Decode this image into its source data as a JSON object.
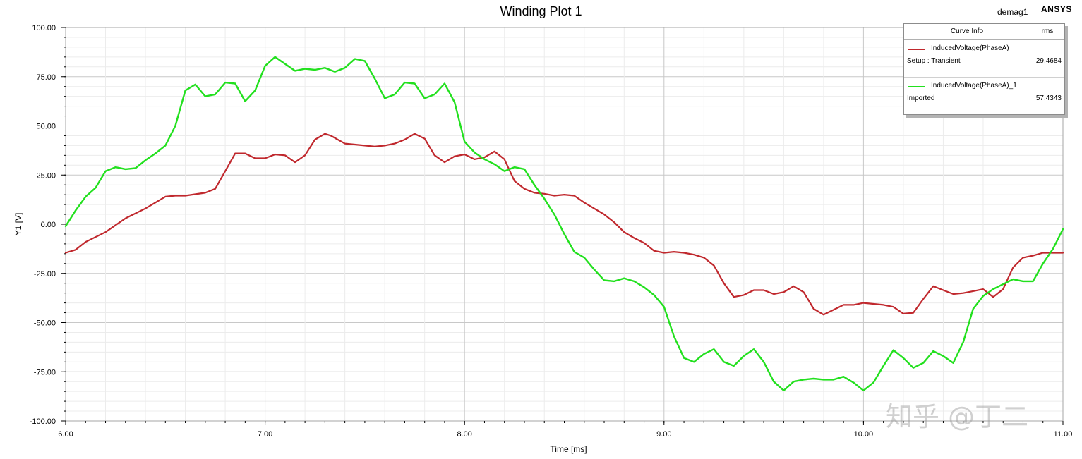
{
  "plot": {
    "title": "Winding Plot 1",
    "design_name": "demag1",
    "brand": "ANSYS",
    "watermark": "知乎 @丁二"
  },
  "legend": {
    "header_name": "Curve Info",
    "header_value": "rms",
    "entries": [
      {
        "name": "InducedVoltage(PhaseA)",
        "source": "Setup : Transient",
        "rms": "29.4684",
        "color": "#c0282d"
      },
      {
        "name": "InducedVoltage(PhaseA)_1",
        "source": "Imported",
        "rms": "57.4343",
        "color": "#22e01e"
      }
    ]
  },
  "chart_data": {
    "type": "line",
    "title": "Winding Plot 1",
    "xlabel": "Time [ms]",
    "ylabel": "Y1 [V]",
    "xlim": [
      6.0,
      11.0
    ],
    "ylim": [
      -100.0,
      100.0
    ],
    "x_ticks": [
      "6.00",
      "7.00",
      "8.00",
      "9.00",
      "10.00",
      "11.00"
    ],
    "y_ticks": [
      "100.00",
      "75.00",
      "50.00",
      "25.00",
      "0.00",
      "-25.00",
      "-50.00",
      "-75.00",
      "-100.00"
    ],
    "grid": true,
    "legend_position": "top-right",
    "series": [
      {
        "name": "InducedVoltage(PhaseA)",
        "color": "#c0282d",
        "x": [
          6.0,
          6.05,
          6.1,
          6.2,
          6.3,
          6.4,
          6.5,
          6.55,
          6.6,
          6.7,
          6.75,
          6.8,
          6.85,
          6.9,
          6.95,
          7.0,
          7.05,
          7.1,
          7.15,
          7.2,
          7.25,
          7.3,
          7.33,
          7.4,
          7.45,
          7.5,
          7.55,
          7.6,
          7.65,
          7.7,
          7.75,
          7.8,
          7.85,
          7.9,
          7.95,
          8.0,
          8.05,
          8.1,
          8.15,
          8.2,
          8.25,
          8.3,
          8.35,
          8.4,
          8.45,
          8.5,
          8.55,
          8.6,
          8.65,
          8.7,
          8.75,
          8.8,
          8.85,
          8.9,
          8.95,
          9.0,
          9.05,
          9.1,
          9.15,
          9.2,
          9.25,
          9.3,
          9.35,
          9.4,
          9.45,
          9.5,
          9.55,
          9.6,
          9.65,
          9.7,
          9.75,
          9.8,
          9.85,
          9.9,
          9.95,
          10.0,
          10.05,
          10.1,
          10.15,
          10.2,
          10.25,
          10.3,
          10.35,
          10.4,
          10.45,
          10.5,
          10.55,
          10.6,
          10.65,
          10.7,
          10.75,
          10.8,
          10.85,
          10.9,
          10.95,
          11.0
        ],
        "y": [
          -14.5,
          -13.0,
          -9.0,
          -4.0,
          3.0,
          8.0,
          14.0,
          14.5,
          14.5,
          16.0,
          18.0,
          27.0,
          36.0,
          36.0,
          33.5,
          33.5,
          35.5,
          35.0,
          31.5,
          35.0,
          43.0,
          46.0,
          45.0,
          41.0,
          40.5,
          40.0,
          39.5,
          40.0,
          41.0,
          43.0,
          46.0,
          43.5,
          35.0,
          31.5,
          34.5,
          35.5,
          33.0,
          34.0,
          37.0,
          33.0,
          22.0,
          18.0,
          16.0,
          15.5,
          14.5,
          15.0,
          14.5,
          11.0,
          8.0,
          5.0,
          1.0,
          -4.0,
          -7.0,
          -9.5,
          -13.5,
          -14.5,
          -14.0,
          -14.5,
          -15.5,
          -17.0,
          -21.0,
          -30.0,
          -37.0,
          -36.0,
          -33.5,
          -33.5,
          -35.5,
          -34.5,
          -31.5,
          -34.5,
          -43.0,
          -46.0,
          -43.5,
          -41.0,
          -41.0,
          -40.0,
          -40.5,
          -41.0,
          -42.0,
          -45.5,
          -45.0,
          -38.0,
          -31.5,
          -33.5,
          -35.5,
          -35.0,
          -34.0,
          -33.0,
          -37.0,
          -33.0,
          -22.0,
          -17.0,
          -16.0,
          -14.5,
          -14.5,
          -14.5
        ]
      },
      {
        "name": "InducedVoltage(PhaseA)_1",
        "color": "#22e01e",
        "x": [
          6.0,
          6.05,
          6.1,
          6.15,
          6.2,
          6.25,
          6.3,
          6.35,
          6.4,
          6.45,
          6.5,
          6.55,
          6.6,
          6.65,
          6.7,
          6.75,
          6.8,
          6.85,
          6.9,
          6.95,
          7.0,
          7.05,
          7.1,
          7.15,
          7.2,
          7.25,
          7.3,
          7.35,
          7.4,
          7.45,
          7.5,
          7.55,
          7.6,
          7.65,
          7.7,
          7.75,
          7.8,
          7.85,
          7.9,
          7.95,
          8.0,
          8.05,
          8.1,
          8.15,
          8.2,
          8.25,
          8.3,
          8.35,
          8.4,
          8.45,
          8.5,
          8.55,
          8.6,
          8.65,
          8.7,
          8.75,
          8.8,
          8.85,
          8.9,
          8.95,
          9.0,
          9.05,
          9.1,
          9.15,
          9.2,
          9.25,
          9.3,
          9.35,
          9.4,
          9.45,
          9.5,
          9.55,
          9.6,
          9.65,
          9.7,
          9.75,
          9.8,
          9.85,
          9.9,
          9.95,
          10.0,
          10.05,
          10.1,
          10.15,
          10.2,
          10.25,
          10.3,
          10.35,
          10.4,
          10.45,
          10.5,
          10.55,
          10.6,
          10.65,
          10.7,
          10.75,
          10.8,
          10.85,
          10.9,
          10.95,
          11.0
        ],
        "y": [
          -1.0,
          7.0,
          14.0,
          18.5,
          27.0,
          29.0,
          28.0,
          28.5,
          32.5,
          36.0,
          40.0,
          50.0,
          68.0,
          71.0,
          65.0,
          66.0,
          72.0,
          71.5,
          62.5,
          68.0,
          80.5,
          85.0,
          81.5,
          78.0,
          79.0,
          78.5,
          79.5,
          77.5,
          79.5,
          84.0,
          83.0,
          74.0,
          64.0,
          66.0,
          72.0,
          71.5,
          64.0,
          66.0,
          71.5,
          62.0,
          42.0,
          36.5,
          33.0,
          30.5,
          27.0,
          29.0,
          28.0,
          20.0,
          13.0,
          5.0,
          -5.0,
          -14.0,
          -17.0,
          -23.0,
          -28.5,
          -29.0,
          -27.5,
          -29.0,
          -32.0,
          -36.0,
          -42.0,
          -57.0,
          -68.0,
          -70.0,
          -66.0,
          -63.5,
          -70.0,
          -72.0,
          -67.0,
          -63.5,
          -70.0,
          -80.0,
          -84.5,
          -80.0,
          -79.0,
          -78.5,
          -79.0,
          -79.0,
          -77.5,
          -80.5,
          -84.5,
          -80.5,
          -72.0,
          -64.0,
          -68.0,
          -73.0,
          -70.5,
          -64.5,
          -67.0,
          -70.5,
          -60.0,
          -43.0,
          -36.5,
          -33.0,
          -30.5,
          -28.0,
          -29.0,
          -29.0,
          -20.0,
          -12.5,
          -2.5
        ]
      }
    ]
  }
}
